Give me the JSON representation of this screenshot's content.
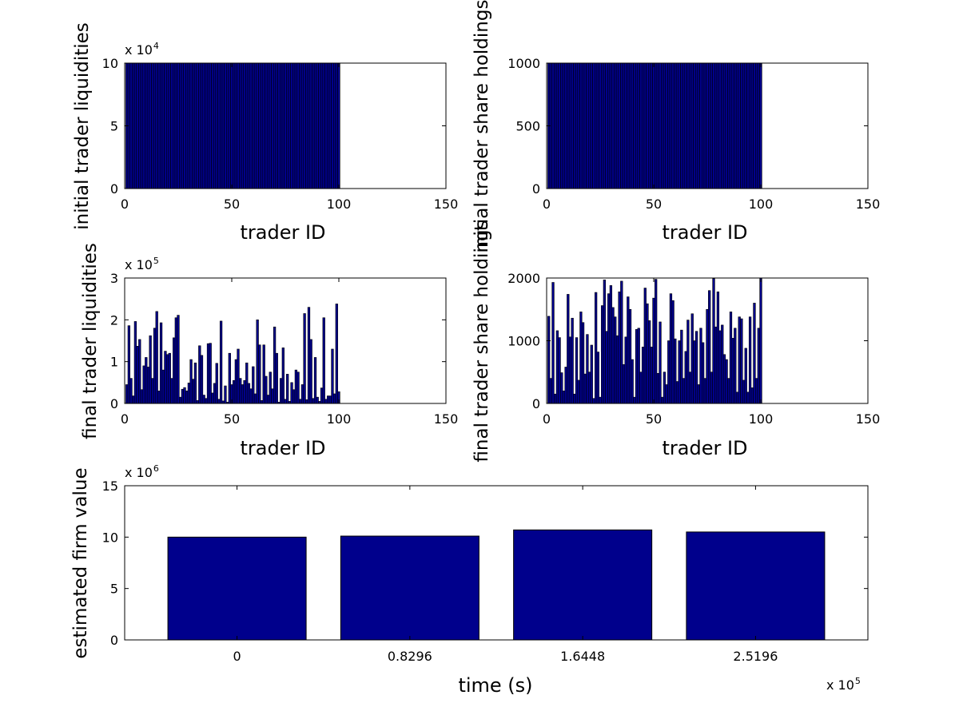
{
  "colors": {
    "bar_fill": "#00008C",
    "bar_edge": "#000000",
    "axes": "#000000",
    "background": "#ffffff"
  },
  "chart_data": [
    {
      "id": "initial_liquidities",
      "type": "bar",
      "xlabel": "trader ID",
      "ylabel": "initial trader liquidities",
      "exponent_label": {
        "base": "x 10",
        "power": "4"
      },
      "xlim": [
        0,
        150
      ],
      "ylim": [
        0,
        100000
      ],
      "xticks": [
        0,
        50,
        100,
        150
      ],
      "xtick_labels": [
        "0",
        "50",
        "100",
        "150"
      ],
      "yticks": [
        0,
        50000,
        100000
      ],
      "ytick_labels": [
        "0",
        "5",
        "10"
      ],
      "x": [
        1,
        2,
        3,
        4,
        5,
        6,
        7,
        8,
        9,
        10,
        11,
        12,
        13,
        14,
        15,
        16,
        17,
        18,
        19,
        20,
        21,
        22,
        23,
        24,
        25,
        26,
        27,
        28,
        29,
        30,
        31,
        32,
        33,
        34,
        35,
        36,
        37,
        38,
        39,
        40,
        41,
        42,
        43,
        44,
        45,
        46,
        47,
        48,
        49,
        50,
        51,
        52,
        53,
        54,
        55,
        56,
        57,
        58,
        59,
        60,
        61,
        62,
        63,
        64,
        65,
        66,
        67,
        68,
        69,
        70,
        71,
        72,
        73,
        74,
        75,
        76,
        77,
        78,
        79,
        80,
        81,
        82,
        83,
        84,
        85,
        86,
        87,
        88,
        89,
        90,
        91,
        92,
        93,
        94,
        95,
        96,
        97,
        98,
        99,
        100
      ],
      "values": [
        100000,
        100000,
        100000,
        100000,
        100000,
        100000,
        100000,
        100000,
        100000,
        100000,
        100000,
        100000,
        100000,
        100000,
        100000,
        100000,
        100000,
        100000,
        100000,
        100000,
        100000,
        100000,
        100000,
        100000,
        100000,
        100000,
        100000,
        100000,
        100000,
        100000,
        100000,
        100000,
        100000,
        100000,
        100000,
        100000,
        100000,
        100000,
        100000,
        100000,
        100000,
        100000,
        100000,
        100000,
        100000,
        100000,
        100000,
        100000,
        100000,
        100000,
        100000,
        100000,
        100000,
        100000,
        100000,
        100000,
        100000,
        100000,
        100000,
        100000,
        100000,
        100000,
        100000,
        100000,
        100000,
        100000,
        100000,
        100000,
        100000,
        100000,
        100000,
        100000,
        100000,
        100000,
        100000,
        100000,
        100000,
        100000,
        100000,
        100000,
        100000,
        100000,
        100000,
        100000,
        100000,
        100000,
        100000,
        100000,
        100000,
        100000,
        100000,
        100000,
        100000,
        100000,
        100000,
        100000,
        100000,
        100000,
        100000,
        100000
      ],
      "bar_width": 1.0
    },
    {
      "id": "initial_holdings",
      "type": "bar",
      "xlabel": "trader ID",
      "ylabel": "initial trader share holdings",
      "xlim": [
        0,
        150
      ],
      "ylim": [
        0,
        1000
      ],
      "xticks": [
        0,
        50,
        100,
        150
      ],
      "xtick_labels": [
        "0",
        "50",
        "100",
        "150"
      ],
      "yticks": [
        0,
        500,
        1000
      ],
      "ytick_labels": [
        "0",
        "500",
        "1000"
      ],
      "x": [
        1,
        2,
        3,
        4,
        5,
        6,
        7,
        8,
        9,
        10,
        11,
        12,
        13,
        14,
        15,
        16,
        17,
        18,
        19,
        20,
        21,
        22,
        23,
        24,
        25,
        26,
        27,
        28,
        29,
        30,
        31,
        32,
        33,
        34,
        35,
        36,
        37,
        38,
        39,
        40,
        41,
        42,
        43,
        44,
        45,
        46,
        47,
        48,
        49,
        50,
        51,
        52,
        53,
        54,
        55,
        56,
        57,
        58,
        59,
        60,
        61,
        62,
        63,
        64,
        65,
        66,
        67,
        68,
        69,
        70,
        71,
        72,
        73,
        74,
        75,
        76,
        77,
        78,
        79,
        80,
        81,
        82,
        83,
        84,
        85,
        86,
        87,
        88,
        89,
        90,
        91,
        92,
        93,
        94,
        95,
        96,
        97,
        98,
        99,
        100
      ],
      "values": [
        1000,
        1000,
        1000,
        1000,
        1000,
        1000,
        1000,
        1000,
        1000,
        1000,
        1000,
        1000,
        1000,
        1000,
        1000,
        1000,
        1000,
        1000,
        1000,
        1000,
        1000,
        1000,
        1000,
        1000,
        1000,
        1000,
        1000,
        1000,
        1000,
        1000,
        1000,
        1000,
        1000,
        1000,
        1000,
        1000,
        1000,
        1000,
        1000,
        1000,
        1000,
        1000,
        1000,
        1000,
        1000,
        1000,
        1000,
        1000,
        1000,
        1000,
        1000,
        1000,
        1000,
        1000,
        1000,
        1000,
        1000,
        1000,
        1000,
        1000,
        1000,
        1000,
        1000,
        1000,
        1000,
        1000,
        1000,
        1000,
        1000,
        1000,
        1000,
        1000,
        1000,
        1000,
        1000,
        1000,
        1000,
        1000,
        1000,
        1000,
        1000,
        1000,
        1000,
        1000,
        1000,
        1000,
        1000,
        1000,
        1000,
        1000,
        1000,
        1000,
        1000,
        1000,
        1000,
        1000,
        1000,
        1000,
        1000,
        1000
      ],
      "bar_width": 1.0
    },
    {
      "id": "final_liquidities",
      "type": "bar",
      "xlabel": "trader ID",
      "ylabel": "final trader liquidities",
      "exponent_label": {
        "base": "x 10",
        "power": "5"
      },
      "xlim": [
        0,
        150
      ],
      "ylim": [
        0,
        300000
      ],
      "xticks": [
        0,
        50,
        100,
        150
      ],
      "xtick_labels": [
        "0",
        "50",
        "100",
        "150"
      ],
      "yticks": [
        0,
        100000,
        200000,
        300000
      ],
      "ytick_labels": [
        "0",
        "1",
        "2",
        "3"
      ],
      "x": [
        1,
        2,
        3,
        4,
        5,
        6,
        7,
        8,
        9,
        10,
        11,
        12,
        13,
        14,
        15,
        16,
        17,
        18,
        19,
        20,
        21,
        22,
        23,
        24,
        25,
        26,
        27,
        28,
        29,
        30,
        31,
        32,
        33,
        34,
        35,
        36,
        37,
        38,
        39,
        40,
        41,
        42,
        43,
        44,
        45,
        46,
        47,
        48,
        49,
        50,
        51,
        52,
        53,
        54,
        55,
        56,
        57,
        58,
        59,
        60,
        61,
        62,
        63,
        64,
        65,
        66,
        67,
        68,
        69,
        70,
        71,
        72,
        73,
        74,
        75,
        76,
        77,
        78,
        79,
        80,
        81,
        82,
        83,
        84,
        85,
        86,
        87,
        88,
        89,
        90,
        91,
        92,
        93,
        94,
        95,
        96,
        97,
        98,
        99,
        100
      ],
      "values": [
        45000,
        186000,
        60000,
        18000,
        196000,
        137000,
        153000,
        33000,
        90000,
        110000,
        87000,
        162000,
        60000,
        180000,
        220000,
        30000,
        193000,
        80000,
        125000,
        117000,
        120000,
        60000,
        157000,
        205000,
        211000,
        15000,
        34000,
        38000,
        30000,
        49000,
        105000,
        58000,
        97000,
        7000,
        138000,
        115000,
        20000,
        12000,
        143000,
        144000,
        25000,
        48000,
        96000,
        10000,
        197000,
        6000,
        42000,
        3000,
        120000,
        45000,
        55000,
        105000,
        130000,
        60000,
        45000,
        55000,
        97000,
        48000,
        35000,
        88000,
        23000,
        200000,
        140000,
        7000,
        140000,
        65000,
        20000,
        75000,
        35000,
        183000,
        120000,
        3000,
        60000,
        133000,
        10000,
        70000,
        5000,
        50000,
        33000,
        80000,
        75000,
        10000,
        45000,
        215000,
        9000,
        230000,
        153000,
        12000,
        110000,
        15000,
        5000,
        37000,
        205000,
        10000,
        18000,
        18000,
        130000,
        23000,
        238000,
        28000
      ],
      "bar_width": 1.0
    },
    {
      "id": "final_holdings",
      "type": "bar",
      "xlabel": "trader ID",
      "ylabel": "final trader share holdings",
      "xlim": [
        0,
        150
      ],
      "ylim": [
        0,
        2000
      ],
      "xticks": [
        0,
        50,
        100,
        150
      ],
      "xtick_labels": [
        "0",
        "50",
        "100",
        "150"
      ],
      "yticks": [
        0,
        1000,
        2000
      ],
      "ytick_labels": [
        "0",
        "1000",
        "2000"
      ],
      "x": [
        1,
        2,
        3,
        4,
        5,
        6,
        7,
        8,
        9,
        10,
        11,
        12,
        13,
        14,
        15,
        16,
        17,
        18,
        19,
        20,
        21,
        22,
        23,
        24,
        25,
        26,
        27,
        28,
        29,
        30,
        31,
        32,
        33,
        34,
        35,
        36,
        37,
        38,
        39,
        40,
        41,
        42,
        43,
        44,
        45,
        46,
        47,
        48,
        49,
        50,
        51,
        52,
        53,
        54,
        55,
        56,
        57,
        58,
        59,
        60,
        61,
        62,
        63,
        64,
        65,
        66,
        67,
        68,
        69,
        70,
        71,
        72,
        73,
        74,
        75,
        76,
        77,
        78,
        79,
        80,
        81,
        82,
        83,
        84,
        85,
        86,
        87,
        88,
        89,
        90,
        91,
        92,
        93,
        94,
        95,
        96,
        97,
        98,
        99,
        100
      ],
      "values": [
        1390,
        400,
        1930,
        150,
        1160,
        1050,
        490,
        200,
        580,
        1740,
        1060,
        1360,
        150,
        1050,
        370,
        1460,
        1290,
        470,
        1100,
        500,
        930,
        80,
        1770,
        820,
        100,
        1560,
        1970,
        1150,
        1750,
        1880,
        1530,
        1380,
        1080,
        1780,
        1950,
        620,
        1060,
        1700,
        1500,
        700,
        100,
        1180,
        1200,
        500,
        900,
        1840,
        1590,
        1320,
        900,
        1680,
        1980,
        480,
        1300,
        100,
        500,
        300,
        1000,
        1750,
        1640,
        1030,
        350,
        1000,
        1170,
        400,
        830,
        1330,
        500,
        1430,
        1000,
        1150,
        300,
        1200,
        970,
        400,
        1500,
        1800,
        500,
        1990,
        1220,
        1780,
        1160,
        1250,
        780,
        700,
        400,
        1460,
        1040,
        1200,
        180,
        1380,
        1350,
        370,
        880,
        180,
        1380,
        250,
        1600,
        400,
        1200,
        2000
      ],
      "bar_width": 1.0
    },
    {
      "id": "firm_value",
      "type": "bar",
      "xlabel": "time (s)",
      "ylabel": "estimated firm value",
      "exponent_label": {
        "base": "x 10",
        "power": "6"
      },
      "x_exponent_label": {
        "base": "x 10",
        "power": "5"
      },
      "ylim": [
        0,
        15000000
      ],
      "yticks": [
        0,
        5000000,
        10000000,
        15000000
      ],
      "ytick_labels": [
        "0",
        "5",
        "10",
        "15"
      ],
      "categories": [
        "0",
        "0.8296",
        "1.6448",
        "2.5196"
      ],
      "x": [
        0,
        82960,
        164480,
        251960
      ],
      "values": [
        10000000,
        10100000,
        10700000,
        10500000
      ]
    }
  ]
}
